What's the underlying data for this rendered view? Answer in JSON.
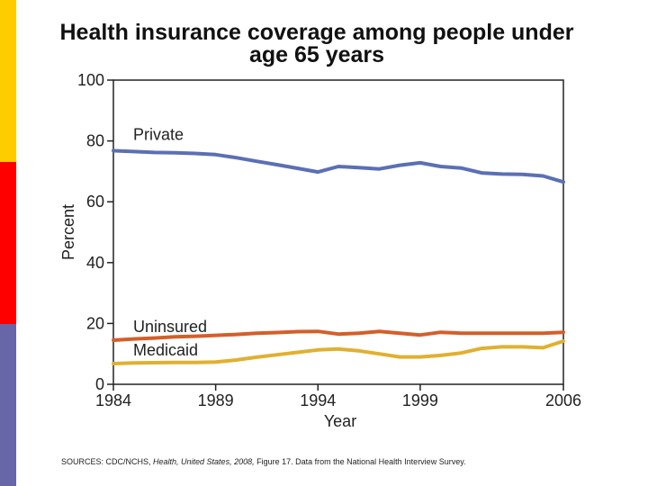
{
  "page": {
    "accent_colors": [
      "#ffcc00",
      "#ff0000",
      "#6666a8"
    ],
    "source_prefix": "SOURCES: CDC/NCHS, ",
    "source_italic": "Health, United States, 2008,",
    "source_suffix": " Figure 17. Data from the National Health Interview Survey."
  },
  "chart_data": {
    "type": "line",
    "title": "Health insurance coverage among people under age 65 years",
    "title_lines": [
      "Health insurance coverage among people under",
      "age 65 years"
    ],
    "xlabel": "Year",
    "ylabel": "Percent",
    "xlim": [
      1984,
      2006
    ],
    "ylim": [
      0,
      100
    ],
    "xticks": [
      1984,
      1989,
      1994,
      1999,
      2006
    ],
    "yticks": [
      0,
      20,
      40,
      60,
      80,
      100
    ],
    "grid": false,
    "x": [
      1984,
      1985,
      1986,
      1987,
      1988,
      1989,
      1990,
      1991,
      1992,
      1993,
      1994,
      1995,
      1996,
      1997,
      1998,
      1999,
      2000,
      2001,
      2002,
      2003,
      2004,
      2005,
      2006
    ],
    "series": [
      {
        "name": "Private",
        "color": "#5b6fb5",
        "values": [
          76.8,
          76.5,
          76.2,
          76.1,
          75.9,
          75.5,
          74.5,
          73.3,
          72.2,
          71.0,
          69.8,
          71.6,
          71.2,
          70.8,
          72.0,
          72.8,
          71.6,
          71.1,
          69.5,
          69.1,
          69.0,
          68.5,
          66.5
        ]
      },
      {
        "name": "Uninsured",
        "color": "#d35f2a",
        "values": [
          14.5,
          14.9,
          15.2,
          15.6,
          15.8,
          16.1,
          16.4,
          16.8,
          17.0,
          17.3,
          17.4,
          16.5,
          16.8,
          17.4,
          16.8,
          16.2,
          17.1,
          16.8,
          16.8,
          16.8,
          16.8,
          16.8,
          17.1
        ]
      },
      {
        "name": "Medicaid",
        "color": "#e0b030",
        "values": [
          6.8,
          7.0,
          7.1,
          7.2,
          7.2,
          7.3,
          8.0,
          8.9,
          9.7,
          10.5,
          11.3,
          11.6,
          11.0,
          10.0,
          9.0,
          9.0,
          9.5,
          10.3,
          11.8,
          12.3,
          12.3,
          12.0,
          14.2
        ]
      }
    ]
  }
}
